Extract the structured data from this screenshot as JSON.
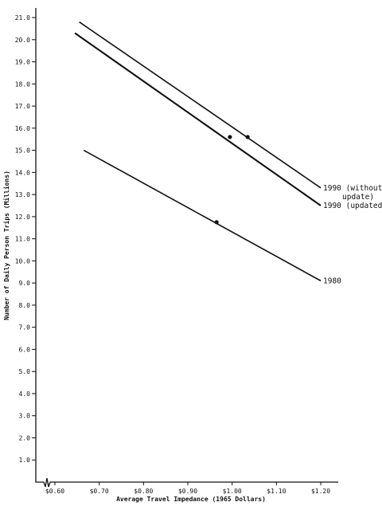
{
  "chart_data": {
    "type": "line",
    "xlabel": "Average Travel Impedance (1965 Dollars)",
    "ylabel": "Number of Daily Person Trips (Millions)",
    "xlim": [
      0.55,
      1.22
    ],
    "ylim": [
      0.0,
      21.0
    ],
    "x_ticks": [
      {
        "value": 0.6,
        "label": "$0.60"
      },
      {
        "value": 0.7,
        "label": "$0.70"
      },
      {
        "value": 0.8,
        "label": "$0.80"
      },
      {
        "value": 0.9,
        "label": "$0.90"
      },
      {
        "value": 1.0,
        "label": "$1.00"
      },
      {
        "value": 1.1,
        "label": "$1.10"
      },
      {
        "value": 1.2,
        "label": "$1.20"
      }
    ],
    "y_ticks": [
      {
        "value": 1.0,
        "label": "1.0"
      },
      {
        "value": 2.0,
        "label": "2.0"
      },
      {
        "value": 3.0,
        "label": "3.0"
      },
      {
        "value": 4.0,
        "label": "4.0"
      },
      {
        "value": 5.0,
        "label": "5.0"
      },
      {
        "value": 6.0,
        "label": "6.0"
      },
      {
        "value": 7.0,
        "label": "7.0"
      },
      {
        "value": 8.0,
        "label": "8.0"
      },
      {
        "value": 9.0,
        "label": "9.0"
      },
      {
        "value": 10.0,
        "label": "10.0"
      },
      {
        "value": 11.0,
        "label": "11.0"
      },
      {
        "value": 12.0,
        "label": "12.0"
      },
      {
        "value": 13.0,
        "label": "13.0"
      },
      {
        "value": 14.0,
        "label": "14.0"
      },
      {
        "value": 15.0,
        "label": "15.0"
      },
      {
        "value": 16.0,
        "label": "16.0"
      },
      {
        "value": 17.0,
        "label": "17.0"
      },
      {
        "value": 18.0,
        "label": "18.0"
      },
      {
        "value": 19.0,
        "label": "19.0"
      },
      {
        "value": 20.0,
        "label": "20.0"
      },
      {
        "value": 21.0,
        "label": "21.0"
      }
    ],
    "series": [
      {
        "name": "1990 (without update)",
        "label_lines": [
          "1990 (without",
          "update)"
        ],
        "x": [
          0.655,
          1.2
        ],
        "y": [
          20.8,
          13.3
        ],
        "marker": {
          "x": 1.035,
          "y": 15.6
        }
      },
      {
        "name": "1990 (updated)",
        "label_lines": [
          "1990 (updated)"
        ],
        "x": [
          0.645,
          1.2
        ],
        "y": [
          20.3,
          12.5
        ],
        "marker": {
          "x": 0.995,
          "y": 15.6
        }
      },
      {
        "name": "1980",
        "label_lines": [
          "1980"
        ],
        "x": [
          0.665,
          1.2
        ],
        "y": [
          15.0,
          9.1
        ],
        "marker": {
          "x": 0.965,
          "y": 11.75
        }
      }
    ],
    "grid": false,
    "legend": "none",
    "line_color": "#111111"
  }
}
